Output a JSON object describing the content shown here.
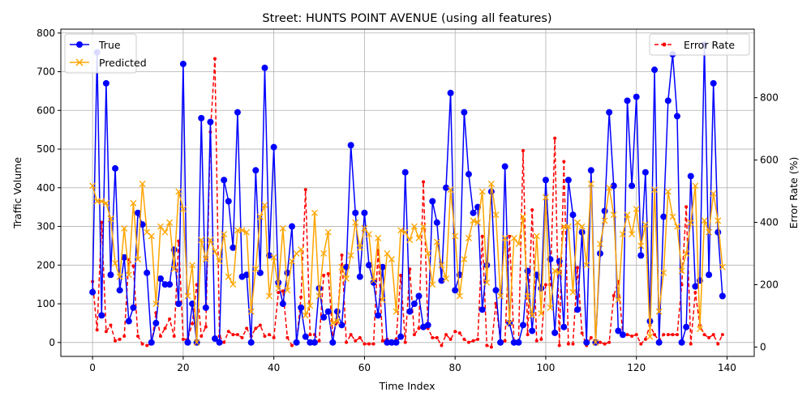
{
  "chart_data": {
    "type": "line",
    "title": "Street: HUNTS POINT AVENUE (using all features)",
    "xlabel": "Time Index",
    "ylabel": "Traffic Volume",
    "y2label": "Error Rate (%)",
    "xlim": [
      -7,
      146
    ],
    "ylim": [
      -36,
      810
    ],
    "y2lim": [
      -30,
      1020
    ],
    "x_ticks": [
      0,
      20,
      40,
      60,
      80,
      100,
      120,
      140
    ],
    "y_ticks": [
      0,
      100,
      200,
      300,
      400,
      500,
      600,
      700,
      800
    ],
    "y2_ticks": [
      0,
      200,
      400,
      600,
      800
    ],
    "grid": true,
    "legend_left_position": "upper-left",
    "legend_right_position": "upper-right",
    "series": [
      {
        "name": "True",
        "color": "#0000ff",
        "marker": "circle",
        "axis": "left",
        "values": [
          130,
          750,
          70,
          670,
          175,
          450,
          135,
          220,
          55,
          90,
          335,
          305,
          180,
          0,
          50,
          165,
          150,
          150,
          240,
          100,
          720,
          0,
          100,
          0,
          580,
          90,
          570,
          10,
          0,
          420,
          365,
          245,
          595,
          170,
          175,
          0,
          445,
          180,
          710,
          225,
          505,
          155,
          100,
          180,
          300,
          0,
          90,
          15,
          0,
          0,
          140,
          65,
          80,
          0,
          80,
          45,
          195,
          510,
          335,
          170,
          335,
          200,
          155,
          70,
          195,
          0,
          0,
          0,
          15,
          440,
          80,
          100,
          120,
          40,
          45,
          365,
          310,
          160,
          400,
          645,
          135,
          175,
          595,
          435,
          335,
          350,
          85,
          200,
          390,
          135,
          0,
          455,
          50,
          0,
          0,
          45,
          185,
          30,
          175,
          140,
          420,
          215,
          25,
          210,
          40,
          420,
          330,
          85,
          285,
          0,
          445,
          0,
          230,
          340,
          595,
          405,
          30,
          20,
          625,
          405,
          635,
          225,
          440,
          55,
          705,
          0,
          325,
          625,
          745,
          585,
          0,
          40,
          430,
          145,
          160,
          770,
          175,
          670,
          285,
          120
        ]
      },
      {
        "name": "Predicted",
        "color": "#ffa500",
        "marker": "x",
        "axis": "left",
        "values": [
          405,
          365,
          365,
          360,
          320,
          205,
          170,
          295,
          175,
          360,
          215,
          410,
          285,
          275,
          100,
          300,
          285,
          310,
          190,
          390,
          345,
          120,
          200,
          0,
          265,
          215,
          265,
          235,
          210,
          280,
          170,
          150,
          290,
          290,
          285,
          80,
          190,
          325,
          355,
          120,
          220,
          140,
          295,
          135,
          210,
          230,
          240,
          70,
          95,
          335,
          120,
          230,
          285,
          50,
          55,
          195,
          165,
          225,
          310,
          245,
          295,
          280,
          160,
          270,
          110,
          230,
          215,
          80,
          290,
          285,
          265,
          300,
          270,
          300,
          230,
          150,
          260,
          200,
          165,
          395,
          275,
          120,
          215,
          270,
          315,
          310,
          390,
          155,
          410,
          330,
          120,
          270,
          50,
          270,
          255,
          325,
          120,
          70,
          275,
          75,
          375,
          90,
          185,
          180,
          300,
          300,
          130,
          310,
          300,
          200,
          410,
          0,
          255,
          315,
          400,
          330,
          110,
          280,
          330,
          280,
          345,
          250,
          305,
          15,
          395,
          80,
          180,
          390,
          325,
          300,
          185,
          230,
          310,
          405,
          35,
          315,
          285,
          385,
          315,
          195
        ]
      },
      {
        "name": "Error Rate",
        "color": "#ff0000",
        "marker": "dot",
        "axis": "right",
        "values": [
          210,
          55,
          400,
          50,
          70,
          20,
          25,
          35,
          280,
          260,
          35,
          10,
          5,
          10,
          110,
          35,
          60,
          90,
          35,
          340,
          25,
          25,
          75,
          200,
          35,
          65,
          690,
          925,
          35,
          15,
          50,
          40,
          40,
          30,
          60,
          35,
          60,
          70,
          35,
          40,
          30,
          175,
          180,
          30,
          5,
          15,
          160,
          505,
          40,
          40,
          20,
          230,
          235,
          40,
          80,
          295,
          15,
          40,
          20,
          30,
          10,
          10,
          10,
          310,
          20,
          25,
          15,
          25,
          230,
          15,
          250,
          40,
          60,
          530,
          60,
          30,
          30,
          5,
          40,
          25,
          50,
          45,
          25,
          15,
          20,
          25,
          355,
          5,
          0,
          140,
          20,
          20,
          355,
          20,
          20,
          630,
          40,
          440,
          20,
          25,
          200,
          200,
          670,
          5,
          595,
          10,
          10,
          255,
          45,
          5,
          30,
          20,
          15,
          10,
          15,
          165,
          210,
          40,
          40,
          35,
          40,
          10,
          25,
          70,
          40,
          20,
          40,
          40,
          40,
          40,
          200,
          450,
          10,
          175,
          70,
          40,
          30,
          40,
          10,
          40
        ]
      }
    ]
  }
}
